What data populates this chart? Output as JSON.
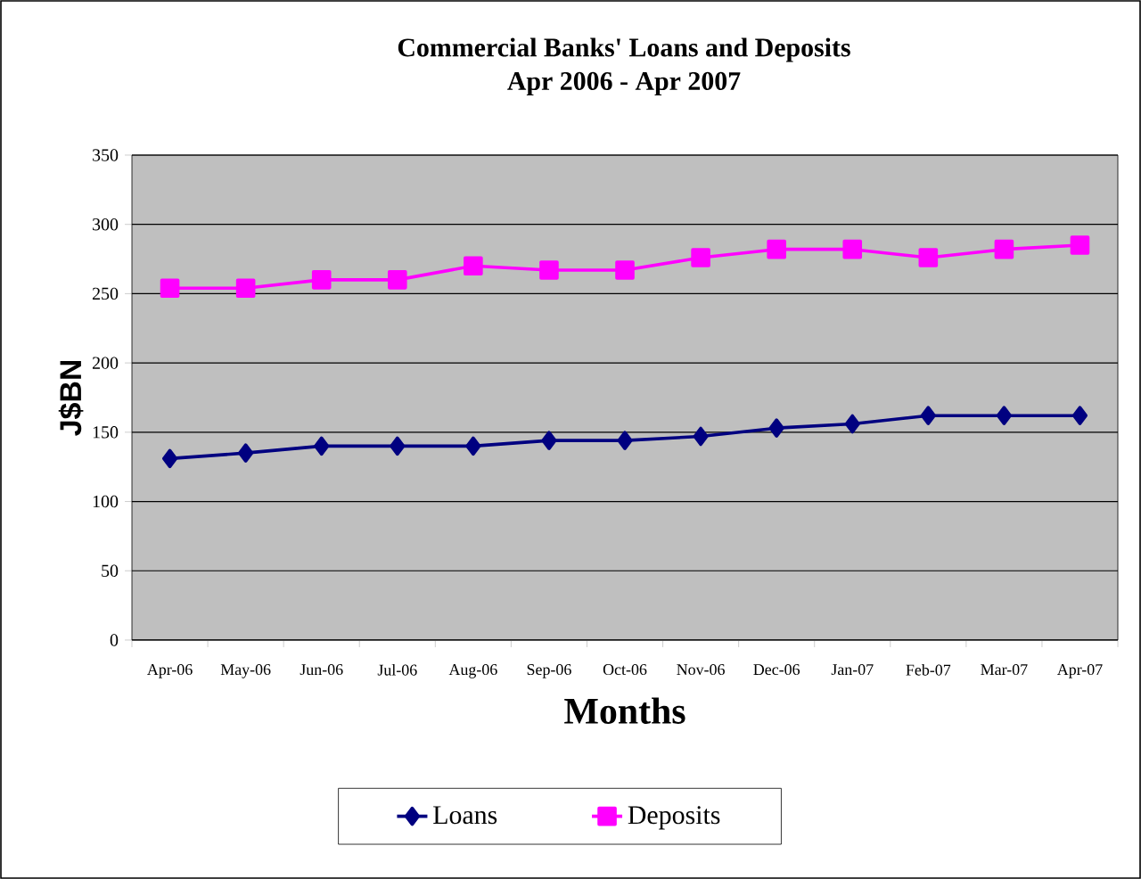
{
  "chart_data": {
    "type": "line",
    "title": "Commercial Banks' Loans and Deposits",
    "subtitle": "Apr 2006 - Apr 2007",
    "xlabel": "Months",
    "ylabel": "J$BN",
    "categories": [
      "Apr-06",
      "May-06",
      "Jun-06",
      "Jul-06",
      "Aug-06",
      "Sep-06",
      "Oct-06",
      "Nov-06",
      "Dec-06",
      "Jan-07",
      "Feb-07",
      "Mar-07",
      "Apr-07"
    ],
    "series": [
      {
        "name": "Loans",
        "color": "#000080",
        "marker": "diamond",
        "values": [
          131,
          135,
          140,
          140,
          140,
          144,
          144,
          147,
          153,
          156,
          162,
          162,
          162
        ]
      },
      {
        "name": "Deposits",
        "color": "#ff00ff",
        "marker": "square",
        "values": [
          254,
          254,
          260,
          260,
          270,
          267,
          267,
          276,
          282,
          282,
          276,
          282,
          285
        ]
      }
    ],
    "ylim": [
      0,
      350
    ],
    "yticks": [
      0,
      50,
      100,
      150,
      200,
      250,
      300,
      350
    ],
    "grid": "y",
    "legend": "bottom",
    "line_style": "solid"
  }
}
